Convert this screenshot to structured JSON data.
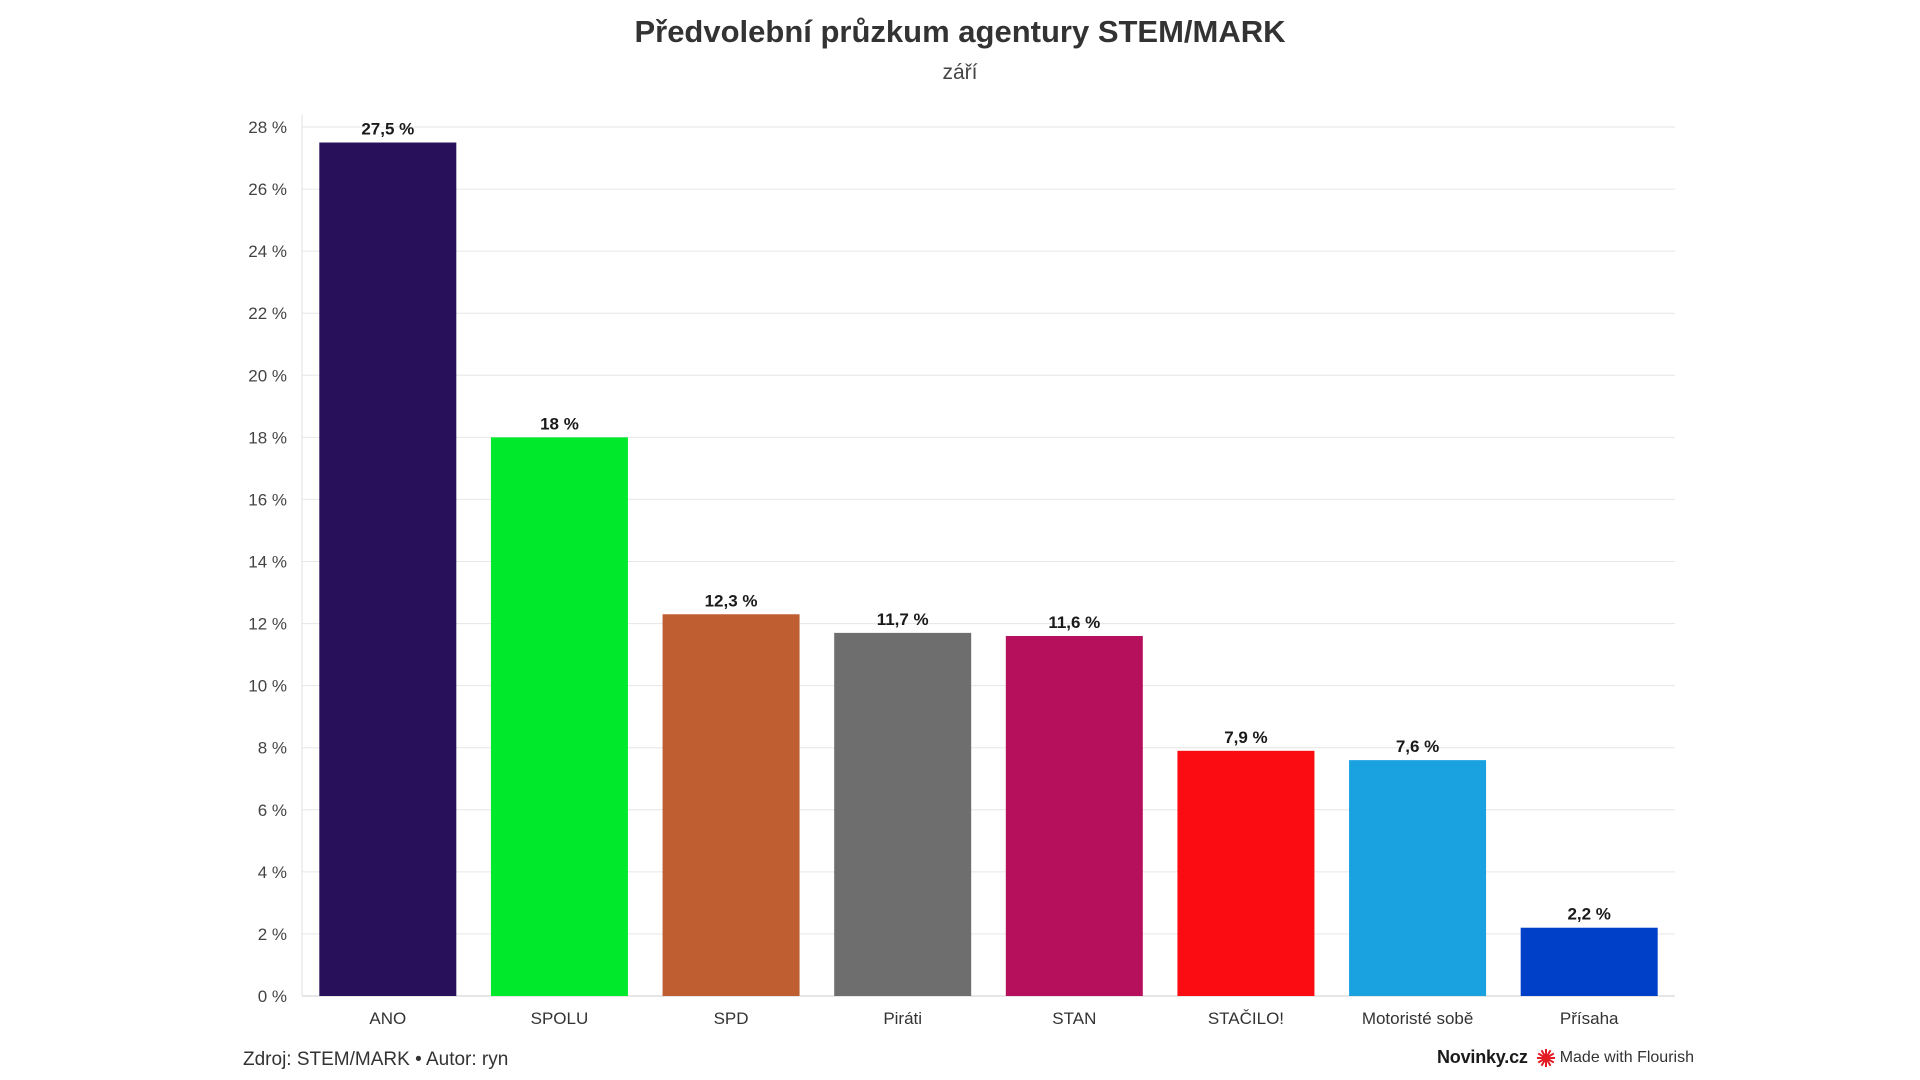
{
  "chart_data": {
    "type": "bar",
    "title": "Předvolební průzkum agentury STEM/MARK",
    "subtitle": "září",
    "categories": [
      "ANO",
      "SPOLU",
      "SPD",
      "Piráti",
      "STAN",
      "STAČILO!",
      "Motoristé sobě",
      "Přísaha"
    ],
    "values": [
      27.5,
      18,
      12.3,
      11.7,
      11.6,
      7.9,
      7.6,
      2.2
    ],
    "value_labels": [
      "27,5 %",
      "18 %",
      "12,3 %",
      "11,7 %",
      "11,6 %",
      "7,9 %",
      "7,6 %",
      "2,2 %"
    ],
    "colors": [
      "#29105a",
      "#00e92b",
      "#bf5e30",
      "#6e6e6e",
      "#b60f5c",
      "#fa0c12",
      "#1aa2e0",
      "#0040c8"
    ],
    "y_ticks": [
      0,
      2,
      4,
      6,
      8,
      10,
      12,
      14,
      16,
      18,
      20,
      22,
      24,
      26,
      28
    ],
    "y_tick_labels": [
      "0 %",
      "2 %",
      "4 %",
      "6 %",
      "8 %",
      "10 %",
      "12 %",
      "14 %",
      "16 %",
      "18 %",
      "20 %",
      "22 %",
      "24 %",
      "26 %",
      "28 %"
    ],
    "ylim": [
      0,
      28
    ],
    "xlabel": "",
    "ylabel": "",
    "grid": true,
    "legend": false
  },
  "footer": {
    "source": "Zdroj: STEM/MARK • Autor: ryn",
    "brand": "Novinky.cz",
    "flourish_label": "Made with Flourish",
    "flourish_icon": "flourish-burst-icon",
    "flourish_color": "#e51b24"
  }
}
